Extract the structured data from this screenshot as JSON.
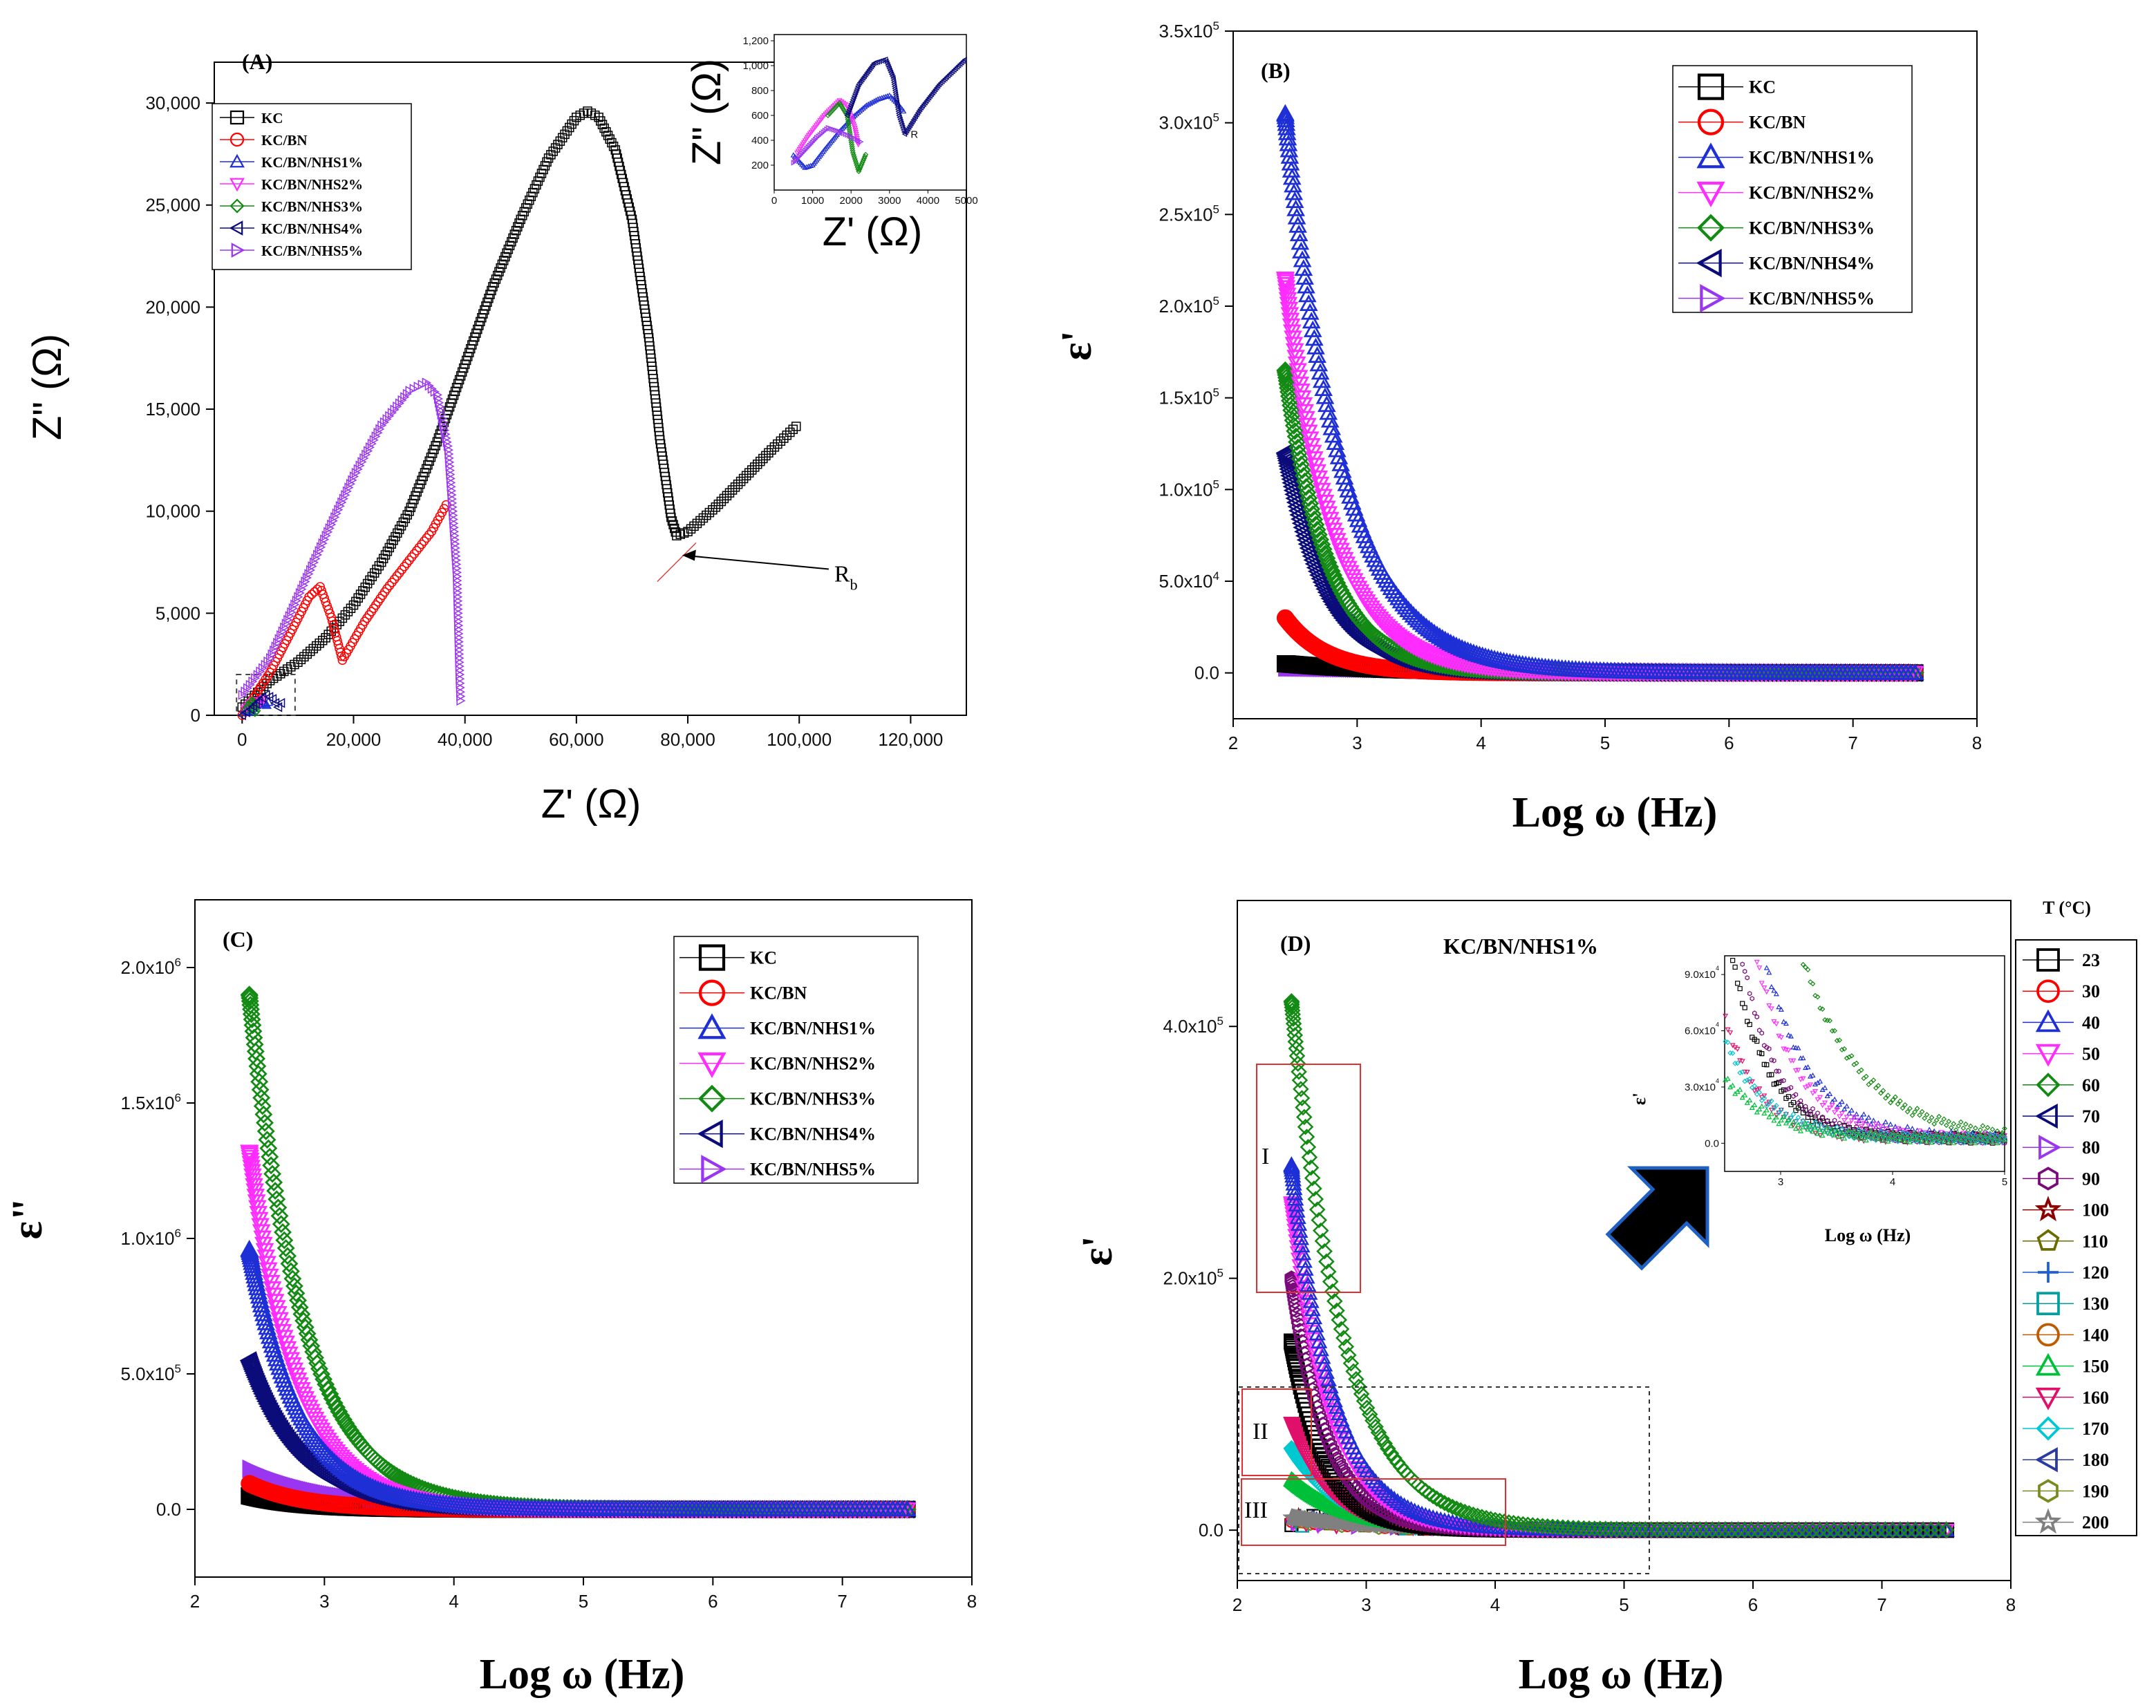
{
  "colors": {
    "KC": "#000000",
    "KC/BN": "#ff0000",
    "KC/BN/NHS1%": "#1f2fd6",
    "KC/BN/NHS2%": "#ff2cff",
    "KC/BN/NHS3%": "#138a13",
    "KC/BN/NHS4%": "#0b0b7a",
    "KC/BN/NHS5%": "#9b36f0"
  },
  "samples": [
    "KC",
    "KC/BN",
    "KC/BN/NHS1%",
    "KC/BN/NHS2%",
    "KC/BN/NHS3%",
    "KC/BN/NHS4%",
    "KC/BN/NHS5%"
  ],
  "marker_names": [
    "square-marker",
    "circle-marker",
    "triangle-up-marker",
    "triangle-down-marker",
    "diamond-marker",
    "triangle-left-marker",
    "triangle-right-marker"
  ],
  "chart_data": [
    {
      "id": "A",
      "type": "scatter",
      "panel_label": "(A)",
      "xlabel": "Z' (Ω)",
      "ylabel": "Z\" (Ω)",
      "xlim": [
        -5000,
        130000
      ],
      "ylim": [
        0,
        32000
      ],
      "xticks": [
        0,
        20000,
        40000,
        60000,
        80000,
        100000,
        120000
      ],
      "xtick_labels": [
        "0",
        "20,000",
        "40,000",
        "60,000",
        "80,000",
        "100,000",
        "120,000"
      ],
      "yticks": [
        0,
        5000,
        10000,
        15000,
        20000,
        25000,
        30000
      ],
      "ytick_labels": [
        "0",
        "5,000",
        "10,000",
        "15,000",
        "20,000",
        "25,000",
        "30,000"
      ],
      "legend": [
        "KC",
        "KC/BN",
        "KC/BN/NHS1%",
        "KC/BN/NHS2%",
        "KC/BN/NHS3%",
        "KC/BN/NHS4%",
        "KC/BN/NHS5%"
      ],
      "legend_position": "top-left",
      "annotation": {
        "text": "R",
        "sub": "b",
        "x": 78000,
        "y": 7500
      },
      "series": [
        {
          "name": "KC",
          "points": [
            [
              0,
              400
            ],
            [
              5000,
              1700
            ],
            [
              10000,
              2600
            ],
            [
              15000,
              3800
            ],
            [
              20000,
              5400
            ],
            [
              25000,
              7500
            ],
            [
              30000,
              10000
            ],
            [
              35000,
              13400
            ],
            [
              40000,
              17200
            ],
            [
              45000,
              21000
            ],
            [
              50000,
              24300
            ],
            [
              55000,
              27300
            ],
            [
              60000,
              29300
            ],
            [
              62000,
              29600
            ],
            [
              64000,
              29300
            ],
            [
              67000,
              27700
            ],
            [
              70000,
              24300
            ],
            [
              73000,
              18500
            ],
            [
              75000,
              13500
            ],
            [
              77000,
              9700
            ],
            [
              78000,
              8800
            ],
            [
              80000,
              9000
            ],
            [
              85000,
              10200
            ],
            [
              90000,
              11600
            ],
            [
              95000,
              13000
            ],
            [
              100000,
              14300
            ]
          ]
        },
        {
          "name": "KC/BN",
          "points": [
            [
              0,
              0
            ],
            [
              5000,
              2100
            ],
            [
              9000,
              4200
            ],
            [
              12000,
              5800
            ],
            [
              14000,
              6300
            ],
            [
              16000,
              4800
            ],
            [
              18000,
              2700
            ],
            [
              22000,
              4600
            ],
            [
              26000,
              6200
            ],
            [
              30000,
              7600
            ],
            [
              34000,
              9000
            ],
            [
              37000,
              10500
            ]
          ]
        },
        {
          "name": "KC/BN/NHS1%",
          "points": [
            [
              500,
              300
            ],
            [
              1000,
              150
            ],
            [
              1800,
              200
            ],
            [
              2600,
              500
            ],
            [
              3200,
              620
            ],
            [
              3800,
              600
            ],
            [
              4400,
              500
            ],
            [
              5000,
              800
            ]
          ]
        },
        {
          "name": "KC/BN/NHS2%",
          "points": [
            [
              500,
              300
            ],
            [
              1200,
              500
            ],
            [
              2000,
              700
            ],
            [
              2800,
              500
            ],
            [
              3500,
              700
            ],
            [
              4200,
              900
            ]
          ]
        },
        {
          "name": "KC/BN/NHS3%",
          "points": [
            [
              800,
              300
            ],
            [
              1400,
              600
            ],
            [
              1800,
              700
            ],
            [
              2100,
              500
            ],
            [
              2300,
              150
            ],
            [
              2700,
              300
            ]
          ]
        },
        {
          "name": "KC/BN/NHS4%",
          "points": [
            [
              0,
              0
            ],
            [
              1500,
              300
            ],
            [
              3000,
              700
            ],
            [
              4300,
              1000
            ],
            [
              5500,
              800
            ],
            [
              6500,
              400
            ],
            [
              7500,
              800
            ]
          ]
        },
        {
          "name": "KC/BN/NHS5%",
          "points": [
            [
              0,
              1000
            ],
            [
              5000,
              2800
            ],
            [
              10000,
              5800
            ],
            [
              15000,
              8800
            ],
            [
              20000,
              11700
            ],
            [
              25000,
              14200
            ],
            [
              30000,
              15900
            ],
            [
              33000,
              16300
            ],
            [
              35000,
              15700
            ],
            [
              37000,
              13000
            ],
            [
              38500,
              7000
            ],
            [
              39000,
              2000
            ],
            [
              39200,
              500
            ]
          ]
        }
      ],
      "inset": {
        "xlabel": "Z' (Ω)",
        "ylabel": "Z\" (Ω)",
        "xlim": [
          0,
          5000
        ],
        "ylim": [
          0,
          1250
        ],
        "xticks": [
          0,
          1000,
          2000,
          3000,
          4000,
          5000
        ],
        "xtick_labels": [
          "0",
          "1000",
          "2000",
          "3000",
          "4000",
          "5000"
        ],
        "yticks": [
          200,
          400,
          600,
          800,
          1000,
          1200
        ],
        "ytick_labels": [
          "200",
          "400",
          "600",
          "800",
          "1,000",
          "1,200"
        ],
        "annotation": "R",
        "series": [
          {
            "name": "KC/BN/NHS1%",
            "points": [
              [
                500,
                280
              ],
              [
                800,
                180
              ],
              [
                1000,
                200
              ],
              [
                1300,
                320
              ],
              [
                1700,
                470
              ],
              [
                2100,
                600
              ],
              [
                2400,
                680
              ],
              [
                2700,
                730
              ],
              [
                3000,
                760
              ],
              [
                3200,
                700
              ],
              [
                3400,
                620
              ]
            ]
          },
          {
            "name": "KC/BN/NHS2%",
            "points": [
              [
                600,
                300
              ],
              [
                900,
                440
              ],
              [
                1300,
                600
              ],
              [
                1700,
                720
              ],
              [
                1900,
                680
              ],
              [
                2100,
                500
              ],
              [
                2200,
                350
              ]
            ]
          },
          {
            "name": "KC/BN/NHS3%",
            "points": [
              [
                1400,
                600
              ],
              [
                1700,
                700
              ],
              [
                1900,
                600
              ],
              [
                2050,
                300
              ],
              [
                2200,
                150
              ],
              [
                2400,
                300
              ]
            ]
          },
          {
            "name": "KC/BN/NHS4%",
            "points": [
              [
                1900,
                600
              ],
              [
                2200,
                850
              ],
              [
                2600,
                1020
              ],
              [
                2900,
                1050
              ],
              [
                3100,
                900
              ],
              [
                3250,
                600
              ],
              [
                3400,
                450
              ],
              [
                3800,
                650
              ],
              [
                4300,
                850
              ],
              [
                5000,
                1060
              ]
            ]
          },
          {
            "name": "KC/BN/NHS5%",
            "points": [
              [
                500,
                220
              ],
              [
                800,
                320
              ],
              [
                1100,
                420
              ],
              [
                1400,
                500
              ],
              [
                1700,
                470
              ],
              [
                2000,
                430
              ],
              [
                2300,
                380
              ]
            ]
          }
        ]
      }
    },
    {
      "id": "B",
      "type": "scatter",
      "panel_label": "(B)",
      "xlabel": "Log ω (Hz)",
      "ylabel": "ε'",
      "xlim": [
        2,
        8
      ],
      "ylim": [
        -25000,
        350000
      ],
      "xticks": [
        2,
        3,
        4,
        5,
        6,
        7,
        8
      ],
      "xtick_labels": [
        "2",
        "3",
        "4",
        "5",
        "6",
        "7",
        "8"
      ],
      "yticks": [
        0,
        50000,
        100000,
        150000,
        200000,
        250000,
        300000,
        350000
      ],
      "ytick_labels": [
        [
          "0.0",
          ""
        ],
        [
          "5.0x10",
          "4"
        ],
        [
          "1.0x10",
          "5"
        ],
        [
          "1.5x10",
          "5"
        ],
        [
          "2.0x10",
          "5"
        ],
        [
          "2.5x10",
          "5"
        ],
        [
          "3.0x10",
          "5"
        ],
        [
          "3.5x10",
          "5"
        ]
      ],
      "legend": [
        "KC",
        "KC/BN",
        "KC/BN/NHS1%",
        "KC/BN/NHS2%",
        "KC/BN/NHS3%",
        "KC/BN/NHS4%",
        "KC/BN/NHS5%"
      ],
      "legend_position": "top-right",
      "x_start": 2.42,
      "x_end": 7.5,
      "series": [
        {
          "name": "KC",
          "eps0": 5000,
          "decay": 1.2
        },
        {
          "name": "KC/BN",
          "eps0": 30000,
          "decay": 3.0
        },
        {
          "name": "KC/BN/NHS1%",
          "eps0": 305000,
          "decay": 2.2
        },
        {
          "name": "KC/BN/NHS2%",
          "eps0": 215000,
          "decay": 2.6
        },
        {
          "name": "KC/BN/NHS3%",
          "eps0": 165000,
          "decay": 2.9
        },
        {
          "name": "KC/BN/NHS4%",
          "eps0": 120000,
          "decay": 3.0
        },
        {
          "name": "KC/BN/NHS5%",
          "eps0": 3000,
          "decay": 0.5
        }
      ]
    },
    {
      "id": "C",
      "type": "scatter",
      "panel_label": "(C)",
      "xlabel": "Log ω (Hz)",
      "ylabel": "ε\"",
      "xlim": [
        2,
        8
      ],
      "ylim": [
        -250000,
        2250000
      ],
      "xticks": [
        2,
        3,
        4,
        5,
        6,
        7,
        8
      ],
      "xtick_labels": [
        "2",
        "3",
        "4",
        "5",
        "6",
        "7",
        "8"
      ],
      "yticks": [
        0,
        500000,
        1000000,
        1500000,
        2000000
      ],
      "ytick_labels": [
        [
          "0.0",
          ""
        ],
        [
          "5.0x10",
          "5"
        ],
        [
          "1.0x10",
          "6"
        ],
        [
          "1.5x10",
          "6"
        ],
        [
          "2.0x10",
          "6"
        ]
      ],
      "legend": [
        "KC",
        "KC/BN",
        "KC/BN/NHS1%",
        "KC/BN/NHS2%",
        "KC/BN/NHS3%",
        "KC/BN/NHS4%",
        "KC/BN/NHS5%"
      ],
      "legend_position": "top-right",
      "x_start": 2.42,
      "x_end": 7.5,
      "series": [
        {
          "name": "KC",
          "eps0": 50000,
          "decay": 2.5
        },
        {
          "name": "KC/BN",
          "eps0": 95000,
          "decay": 2.4
        },
        {
          "name": "KC/BN/NHS1%",
          "eps0": 960000,
          "decay": 2.6
        },
        {
          "name": "KC/BN/NHS2%",
          "eps0": 1320000,
          "decay": 2.7
        },
        {
          "name": "KC/BN/NHS3%",
          "eps0": 1900000,
          "decay": 2.4
        },
        {
          "name": "KC/BN/NHS4%",
          "eps0": 550000,
          "decay": 2.5
        },
        {
          "name": "KC/BN/NHS5%",
          "eps0": 150000,
          "decay": 1.6
        }
      ]
    },
    {
      "id": "D",
      "type": "scatter",
      "panel_label": "(D)",
      "subtitle": "KC/BN/NHS1%",
      "xlabel": "Log ω (Hz)",
      "ylabel": "ε'",
      "xlim": [
        2,
        8
      ],
      "ylim": [
        -40000,
        500000
      ],
      "xticks": [
        2,
        3,
        4,
        5,
        6,
        7,
        8
      ],
      "xtick_labels": [
        "2",
        "3",
        "4",
        "5",
        "6",
        "7",
        "8"
      ],
      "yticks": [
        0,
        200000,
        400000
      ],
      "ytick_labels": [
        [
          "0.0",
          ""
        ],
        [
          "2.0x10",
          "5"
        ],
        [
          "4.0x10",
          "5"
        ]
      ],
      "region_labels": [
        "I",
        "II",
        "III"
      ],
      "legend_title": "T (°C)",
      "legend": [
        "23",
        "30",
        "40",
        "50",
        "60",
        "70",
        "80",
        "90",
        "100",
        "110",
        "120",
        "130",
        "140",
        "150",
        "160",
        "170",
        "180",
        "190",
        "200"
      ],
      "legend_colors": [
        "#000000",
        "#ff0000",
        "#1f2fd6",
        "#ff2cff",
        "#138a13",
        "#0b0b7a",
        "#9b36f0",
        "#7a0a7a",
        "#8b0000",
        "#6b6b00",
        "#1f5fd6",
        "#00a0a0",
        "#c05a00",
        "#00c03a",
        "#e0106a",
        "#00c8d0",
        "#2a3aa0",
        "#7a8a20",
        "#808080"
      ],
      "legend_markers": [
        "square",
        "circle",
        "triangle-up",
        "triangle-down",
        "diamond",
        "triangle-left",
        "triangle-right",
        "hexagon",
        "star",
        "pentagon",
        "plus",
        "square-cross",
        "circle-cross",
        "triangle-up",
        "triangle-down",
        "diamond-cross",
        "triangle-left",
        "hexagon",
        "star"
      ],
      "x_start": 2.42,
      "x_end": 7.5,
      "series": [
        {
          "name": "60",
          "eps0": 420000,
          "decay": 2.5
        },
        {
          "name": "40",
          "eps0": 290000,
          "decay": 3.1
        },
        {
          "name": "50",
          "eps0": 260000,
          "decay": 3.3
        },
        {
          "name": "90",
          "eps0": 200000,
          "decay": 3.6
        },
        {
          "name": "23",
          "eps0": 150000,
          "decay": 3.8
        },
        {
          "name": "160",
          "eps0": 85000,
          "decay": 3.2
        },
        {
          "name": "170",
          "eps0": 65000,
          "decay": 2.6
        },
        {
          "name": "150",
          "eps0": 40000,
          "decay": 2.4
        },
        {
          "name": "200",
          "eps0": 10000,
          "decay": 1.5
        }
      ],
      "inset": {
        "xlabel": "Log ω (Hz)",
        "ylabel": "ε'",
        "xlim": [
          2.5,
          5
        ],
        "ylim": [
          -15000,
          100000
        ],
        "xticks": [
          3,
          4,
          5
        ],
        "xtick_labels": [
          "3",
          "4",
          "5"
        ],
        "yticks": [
          0,
          30000,
          60000,
          90000
        ],
        "ytick_labels": [
          [
            "0.0",
            ""
          ],
          [
            "3.0x10",
            "4"
          ],
          [
            "6.0x10",
            "4"
          ],
          [
            "9.0x10",
            "4"
          ]
        ]
      }
    }
  ]
}
